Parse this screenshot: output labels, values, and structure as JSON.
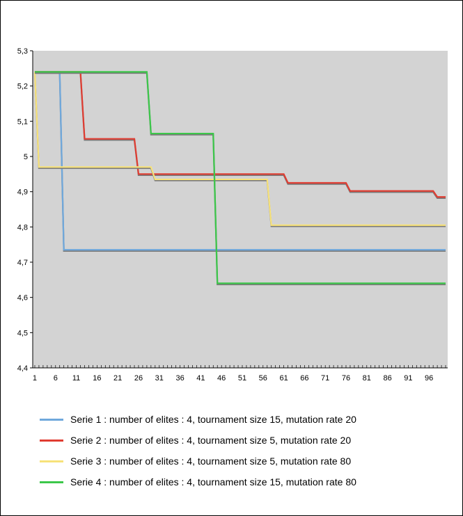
{
  "chart_data": {
    "type": "line",
    "title": "",
    "xlabel": "",
    "ylabel": "",
    "xlim": [
      1,
      100
    ],
    "ylim": [
      4.4,
      5.3
    ],
    "x_ticks": [
      1,
      6,
      11,
      16,
      21,
      26,
      31,
      36,
      41,
      46,
      51,
      56,
      61,
      66,
      71,
      76,
      81,
      86,
      91,
      96
    ],
    "y_ticks": [
      4.4,
      4.5,
      4.6,
      4.7,
      4.8,
      4.9,
      5,
      5.1,
      5.2,
      5.3
    ],
    "y_tick_labels": [
      "4,4",
      "4,5",
      "4,6",
      "4,7",
      "4,8",
      "4,9",
      "5",
      "5,1",
      "5,2",
      "5,3"
    ],
    "plot_background": "#d3d3d3",
    "grid": false,
    "legend_position": "bottom",
    "series": [
      {
        "name": "Serie 1 : number of elites : 4, tournament size 15, mutation rate 20",
        "color": "#6fa8dc",
        "points": [
          [
            1,
            5.24
          ],
          [
            7,
            5.24
          ],
          [
            8,
            4.735
          ],
          [
            100,
            4.735
          ]
        ]
      },
      {
        "name": "Serie 2 : number of elites : 4, tournament size 5, mutation rate 20",
        "color": "#e03c31",
        "points": [
          [
            1,
            5.24
          ],
          [
            12,
            5.24
          ],
          [
            13,
            5.05
          ],
          [
            25,
            5.05
          ],
          [
            26,
            4.95
          ],
          [
            61,
            4.95
          ],
          [
            62,
            4.925
          ],
          [
            76,
            4.925
          ],
          [
            77,
            4.902
          ],
          [
            97,
            4.902
          ],
          [
            98,
            4.885
          ],
          [
            100,
            4.885
          ]
        ]
      },
      {
        "name": "Serie 3 : number of elites : 4, tournament size 5, mutation rate 80",
        "color": "#f7e27a",
        "points": [
          [
            1,
            5.24
          ],
          [
            2,
            4.97
          ],
          [
            29,
            4.97
          ],
          [
            30,
            4.935
          ],
          [
            57,
            4.935
          ],
          [
            58,
            4.805
          ],
          [
            100,
            4.805
          ]
        ]
      },
      {
        "name": "Serie 4 : number of elites : 4, tournament size 15, mutation rate 80",
        "color": "#3cc74a",
        "points": [
          [
            1,
            5.24
          ],
          [
            28,
            5.24
          ],
          [
            29,
            5.065
          ],
          [
            44,
            5.065
          ],
          [
            45,
            4.64
          ],
          [
            100,
            4.64
          ]
        ]
      }
    ]
  }
}
